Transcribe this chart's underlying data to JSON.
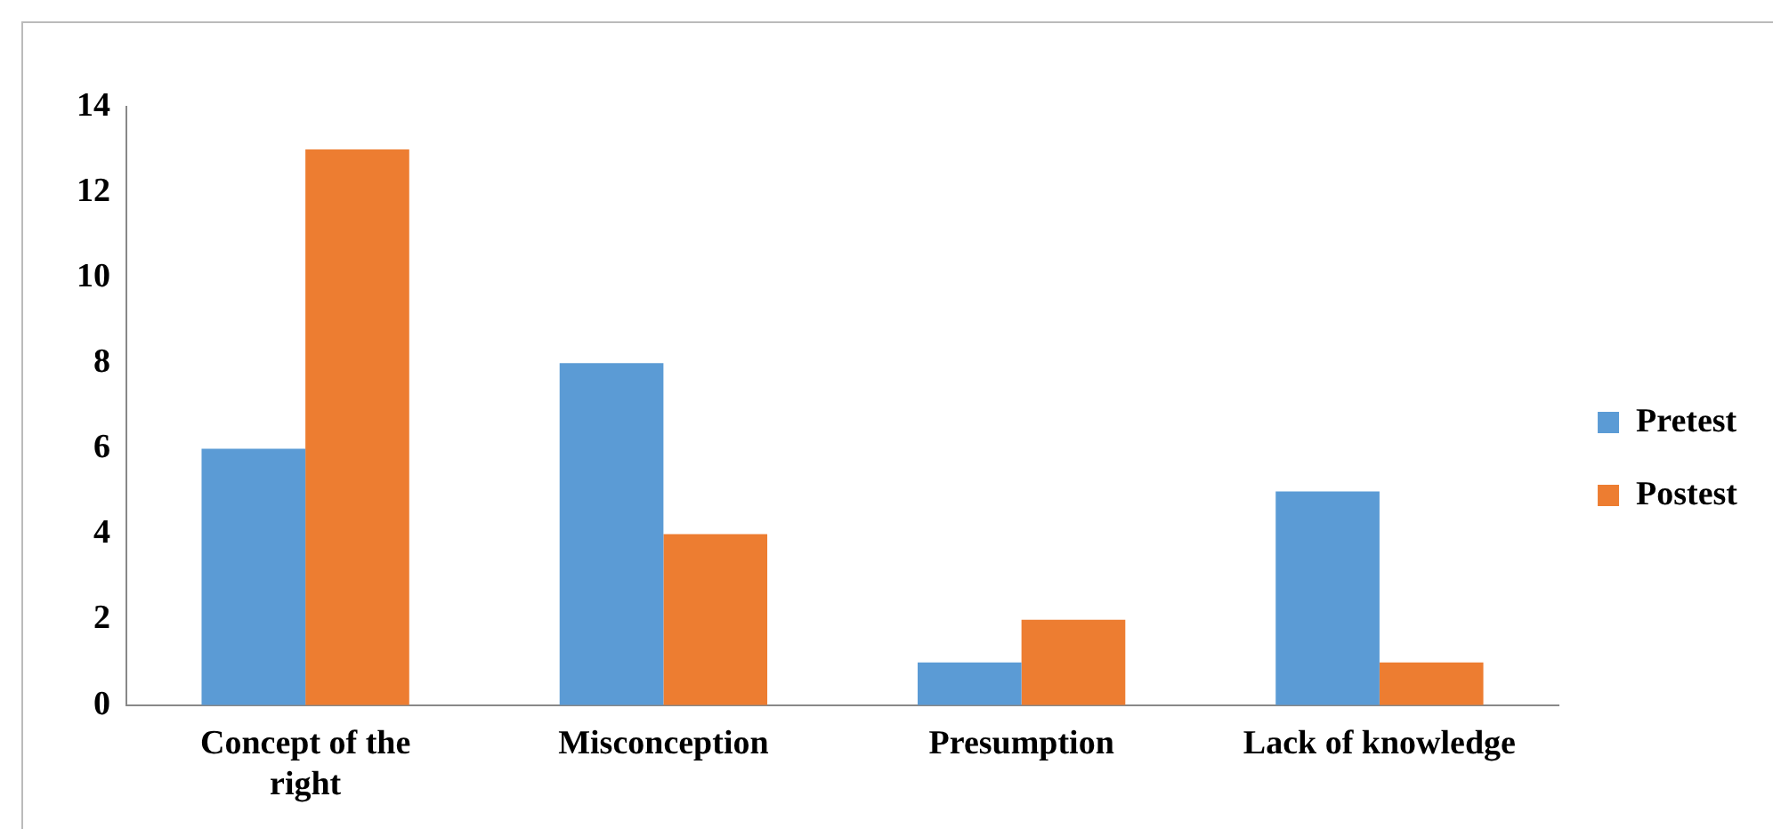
{
  "chart_data": {
    "type": "bar",
    "categories": [
      "Concept of the right",
      "Misconception",
      "Presumption",
      "Lack of knowledge"
    ],
    "series": [
      {
        "name": "Pretest",
        "color": "#5b9bd5",
        "values": [
          6,
          8,
          1,
          5
        ]
      },
      {
        "name": "Postest",
        "color": "#ed7d31",
        "values": [
          13,
          4,
          2,
          1
        ]
      }
    ],
    "ylim": [
      0,
      14
    ],
    "yticks": [
      0,
      2,
      4,
      6,
      8,
      10,
      12,
      14
    ],
    "grid": false,
    "legend": "right"
  }
}
